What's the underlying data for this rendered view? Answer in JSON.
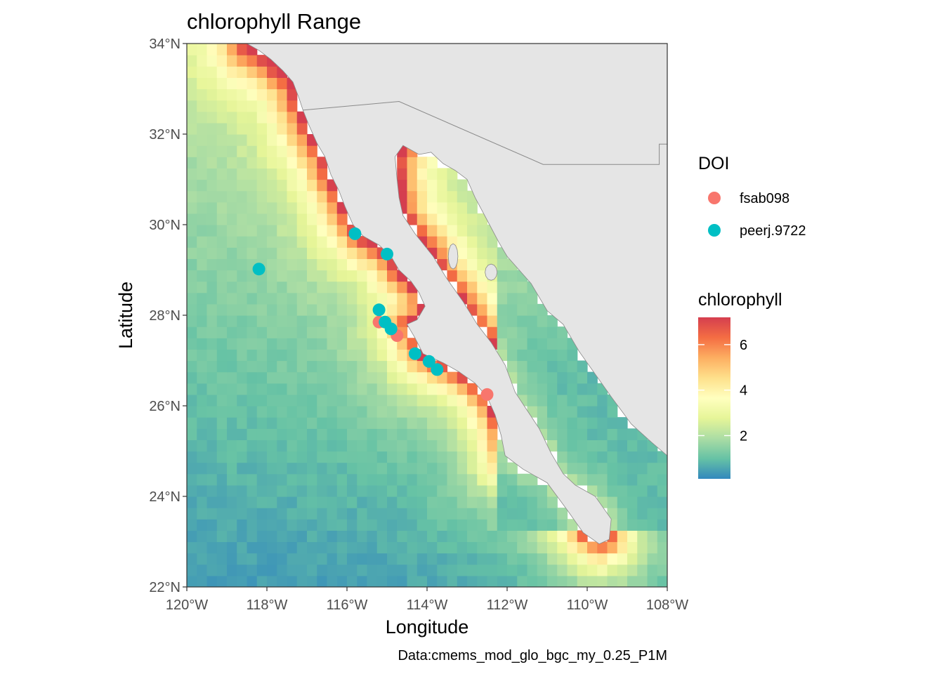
{
  "chart_data": {
    "type": "map",
    "title": "chlorophyll Range",
    "xlabel": "Longitude",
    "ylabel": "Latitude",
    "caption": "Data:cmems_mod_glo_bgc_my_0.25_P1M",
    "xlim": [
      -120,
      -108
    ],
    "ylim": [
      22,
      34
    ],
    "x_ticks": [
      {
        "value": -120,
        "label": "120°W"
      },
      {
        "value": -118,
        "label": "118°W"
      },
      {
        "value": -116,
        "label": "116°W"
      },
      {
        "value": -114,
        "label": "114°W"
      },
      {
        "value": -112,
        "label": "112°W"
      },
      {
        "value": -110,
        "label": "110°W"
      },
      {
        "value": -108,
        "label": "108°W"
      }
    ],
    "y_ticks": [
      {
        "value": 22,
        "label": "22°N"
      },
      {
        "value": 24,
        "label": "24°N"
      },
      {
        "value": 26,
        "label": "26°N"
      },
      {
        "value": 28,
        "label": "28°N"
      },
      {
        "value": 30,
        "label": "30°N"
      },
      {
        "value": 32,
        "label": "32°N"
      },
      {
        "value": 34,
        "label": "34°N"
      }
    ],
    "fill_scale": {
      "name": "chlorophyll",
      "palette": "Spectral",
      "min": 0.1,
      "max": 7.2,
      "breaks": [
        2,
        4,
        6
      ],
      "break_labels": [
        "2",
        "4",
        "6"
      ],
      "colors": [
        "#3288bd",
        "#66c2a5",
        "#abdda4",
        "#e6f598",
        "#ffffbf",
        "#fee08b",
        "#fdae61",
        "#f46d43",
        "#d53e4f"
      ]
    },
    "grid_cell_degrees": 0.25,
    "land_color": "#e5e5e5",
    "legend_position": "right",
    "points_legend_title": "DOI",
    "series": [
      {
        "name": "fsab098",
        "color": "#F8766D",
        "points": [
          {
            "lon": -115.2,
            "lat": 27.85
          },
          {
            "lon": -114.75,
            "lat": 27.55
          },
          {
            "lon": -112.5,
            "lat": 26.25
          }
        ]
      },
      {
        "name": "peerj.9722",
        "color": "#00BFC4",
        "points": [
          {
            "lon": -115.8,
            "lat": 29.8
          },
          {
            "lon": -115.0,
            "lat": 29.35
          },
          {
            "lon": -118.2,
            "lat": 29.02
          },
          {
            "lon": -115.2,
            "lat": 28.12
          },
          {
            "lon": -115.05,
            "lat": 27.85
          },
          {
            "lon": -114.9,
            "lat": 27.7
          },
          {
            "lon": -114.3,
            "lat": 27.15
          },
          {
            "lon": -113.95,
            "lat": 26.98
          },
          {
            "lon": -113.75,
            "lat": 26.8
          }
        ]
      }
    ]
  }
}
